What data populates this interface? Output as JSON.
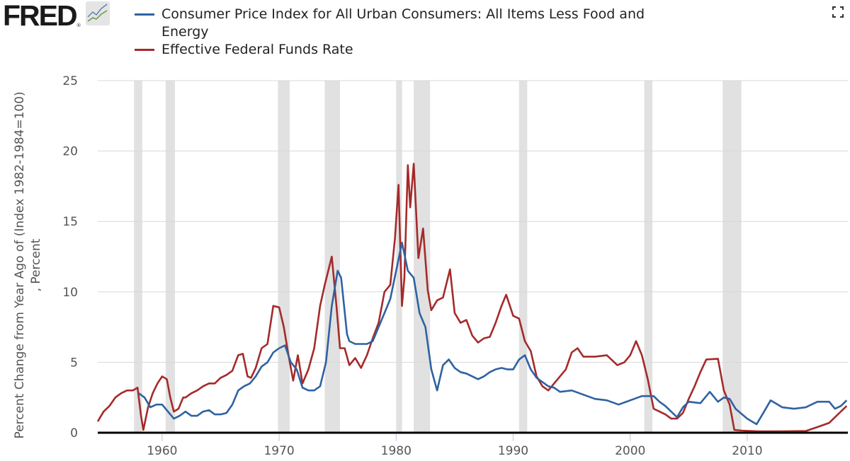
{
  "logo": {
    "text": "FRED",
    "registered": "®"
  },
  "colors": {
    "cpi": "#2f62a1",
    "fedfunds": "#a52a2a",
    "recession": "#e1e1e1",
    "grid": "#d8d8d8",
    "axis": "#000000"
  },
  "icons": {
    "fullscreen": "fullscreen-icon",
    "logo_chart": "line-chart-icon"
  },
  "chart_data": {
    "type": "line",
    "title": "",
    "ylabel": "Percent Change from Year Ago of (Index 1982-1984=100) , Percent",
    "xlabel": "",
    "xlim": [
      1954.5,
      2018.6
    ],
    "ylim": [
      0,
      25
    ],
    "yticks": [
      "0",
      "5",
      "10",
      "15",
      "20",
      "25"
    ],
    "xticks": [
      "1960",
      "1970",
      "1980",
      "1990",
      "2000",
      "2010"
    ],
    "grid": "horizontal",
    "legend_position": "top",
    "recessions": [
      [
        1957.6,
        1958.3
      ],
      [
        1960.3,
        1961.1
      ],
      [
        1969.9,
        1970.9
      ],
      [
        1973.9,
        1975.2
      ],
      [
        1980.0,
        1980.5
      ],
      [
        1981.5,
        1982.9
      ],
      [
        1990.5,
        1991.2
      ],
      [
        2001.2,
        2001.9
      ],
      [
        2007.9,
        2009.5
      ]
    ],
    "series": [
      {
        "name": "Consumer Price Index for All Urban Consumers: All Items Less Food and Energy",
        "x": [
          1958,
          1958.5,
          1959,
          1959.5,
          1960,
          1960.5,
          1961,
          1961.5,
          1962,
          1962.5,
          1963,
          1963.5,
          1964,
          1964.5,
          1965,
          1965.5,
          1966,
          1966.5,
          1967,
          1967.5,
          1968,
          1968.5,
          1969,
          1969.5,
          1970,
          1970.5,
          1971,
          1971.5,
          1972,
          1972.5,
          1973,
          1973.5,
          1974,
          1974.5,
          1975,
          1975.3,
          1975.8,
          1976,
          1976.5,
          1977,
          1977.5,
          1978,
          1978.5,
          1979,
          1979.5,
          1980,
          1980.5,
          1981,
          1981.5,
          1982,
          1982.5,
          1983,
          1983.5,
          1984,
          1984.5,
          1985,
          1985.5,
          1986,
          1986.5,
          1987,
          1987.5,
          1988,
          1988.5,
          1989,
          1989.5,
          1990,
          1990.5,
          1991,
          1991.5,
          1992,
          1992.5,
          1993,
          1993.5,
          1994,
          1995,
          1996,
          1997,
          1998,
          1999,
          2000,
          2001,
          2002,
          2002.5,
          2003,
          2003.5,
          2004,
          2004.5,
          2005,
          2006,
          2006.8,
          2007.5,
          2008,
          2008.5,
          2009,
          2010,
          2010.8,
          2011.3,
          2012,
          2013,
          2014,
          2015,
          2016,
          2017,
          2017.5,
          2018,
          2018.5
        ],
        "values": [
          2.8,
          2.5,
          1.8,
          2.0,
          2.0,
          1.5,
          1.0,
          1.2,
          1.5,
          1.2,
          1.2,
          1.5,
          1.6,
          1.3,
          1.3,
          1.4,
          2.0,
          3.0,
          3.3,
          3.5,
          4.0,
          4.7,
          5.0,
          5.7,
          6.0,
          6.2,
          5.0,
          4.5,
          3.2,
          3.0,
          3.0,
          3.3,
          5.0,
          9.0,
          11.5,
          11.0,
          7.0,
          6.5,
          6.3,
          6.3,
          6.3,
          6.5,
          7.5,
          8.5,
          9.5,
          11.5,
          13.5,
          11.5,
          11.0,
          8.5,
          7.5,
          4.5,
          3.0,
          4.8,
          5.2,
          4.6,
          4.3,
          4.2,
          4.0,
          3.8,
          4.0,
          4.3,
          4.5,
          4.6,
          4.5,
          4.5,
          5.2,
          5.5,
          4.5,
          3.9,
          3.6,
          3.3,
          3.2,
          2.9,
          3.0,
          2.7,
          2.4,
          2.3,
          2.0,
          2.3,
          2.6,
          2.6,
          2.2,
          1.9,
          1.5,
          1.1,
          1.8,
          2.2,
          2.1,
          2.9,
          2.2,
          2.5,
          2.4,
          1.7,
          1.0,
          0.6,
          1.3,
          2.3,
          1.8,
          1.7,
          1.8,
          2.2,
          2.2,
          1.7,
          1.9,
          2.3
        ]
      },
      {
        "name": "Effective Federal Funds Rate",
        "x": [
          1954.5,
          1955,
          1955.5,
          1956,
          1956.5,
          1957,
          1957.5,
          1957.9,
          1958.2,
          1958.4,
          1958.8,
          1959.2,
          1959.6,
          1960,
          1960.4,
          1960.7,
          1961,
          1961.4,
          1961.8,
          1962,
          1962.5,
          1963,
          1963.5,
          1964,
          1964.5,
          1965,
          1965.5,
          1966,
          1966.5,
          1966.9,
          1967.3,
          1967.6,
          1968,
          1968.5,
          1969,
          1969.5,
          1970,
          1970.4,
          1970.8,
          1971.2,
          1971.6,
          1972,
          1972.5,
          1973,
          1973.5,
          1973.9,
          1974.5,
          1974.9,
          1975.2,
          1975.6,
          1976,
          1976.5,
          1977,
          1977.5,
          1978,
          1978.5,
          1979,
          1979.5,
          1979.9,
          1980.2,
          1980.5,
          1980.7,
          1981,
          1981.2,
          1981.5,
          1981.9,
          1982.3,
          1982.7,
          1983,
          1983.5,
          1984,
          1984.6,
          1985,
          1985.5,
          1986,
          1986.5,
          1987,
          1987.5,
          1988,
          1988.5,
          1989,
          1989.4,
          1990,
          1990.5,
          1991,
          1991.5,
          1992,
          1992.5,
          1993,
          1994,
          1994.5,
          1995,
          1995.5,
          1996,
          1997,
          1998,
          1998.9,
          1999.5,
          2000,
          2000.5,
          2001,
          2001.5,
          2002,
          2003,
          2003.5,
          2004,
          2004.5,
          2005,
          2005.5,
          2006,
          2006.5,
          2007.5,
          2008,
          2008.5,
          2008.9,
          2009.5,
          2011,
          2013,
          2015,
          2016,
          2017,
          2017.5,
          2018,
          2018.5
        ],
        "values": [
          0.8,
          1.5,
          1.9,
          2.5,
          2.8,
          3.0,
          3.0,
          3.2,
          1.2,
          0.2,
          1.8,
          2.8,
          3.5,
          4.0,
          3.8,
          2.5,
          1.5,
          1.7,
          2.5,
          2.5,
          2.8,
          3.0,
          3.3,
          3.5,
          3.5,
          3.9,
          4.1,
          4.4,
          5.5,
          5.6,
          4.0,
          3.9,
          4.6,
          6.0,
          6.3,
          9.0,
          8.9,
          7.5,
          5.5,
          3.7,
          5.5,
          3.5,
          4.5,
          6.0,
          9.0,
          10.5,
          12.5,
          9.0,
          6.0,
          6.0,
          4.8,
          5.3,
          4.6,
          5.5,
          6.7,
          7.8,
          10.0,
          10.5,
          13.8,
          17.6,
          9.0,
          11.0,
          19.0,
          16.0,
          19.1,
          12.4,
          14.5,
          10.1,
          8.7,
          9.4,
          9.6,
          11.6,
          8.5,
          7.8,
          8.0,
          6.9,
          6.4,
          6.7,
          6.8,
          7.8,
          9.0,
          9.8,
          8.3,
          8.1,
          6.5,
          5.8,
          4.0,
          3.3,
          3.0,
          4.0,
          4.5,
          5.7,
          6.0,
          5.4,
          5.4,
          5.5,
          4.8,
          5.0,
          5.5,
          6.5,
          5.5,
          3.8,
          1.7,
          1.3,
          1.0,
          1.0,
          1.4,
          2.4,
          3.3,
          4.3,
          5.2,
          5.25,
          3.0,
          2.0,
          0.2,
          0.15,
          0.1,
          0.1,
          0.12,
          0.4,
          0.7,
          1.1,
          1.5,
          1.9
        ]
      }
    ]
  }
}
